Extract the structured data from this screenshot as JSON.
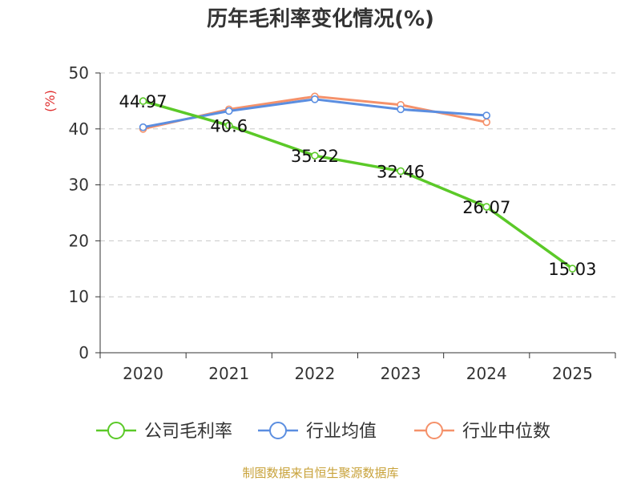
{
  "chart_data": {
    "type": "line",
    "title": "历年毛利率变化情况(%)",
    "ylabel": "(%)",
    "xlabel": "",
    "categories": [
      "2020",
      "2021",
      "2022",
      "2023",
      "2024",
      "2025"
    ],
    "ylim": [
      0,
      50
    ],
    "yticks": [
      0,
      10,
      20,
      30,
      40,
      50
    ],
    "grid": true,
    "legend_position": "bottom",
    "series": [
      {
        "name": "公司毛利率",
        "color": "#5bc928",
        "values": [
          44.97,
          40.6,
          35.22,
          32.46,
          26.07,
          15.03
        ],
        "labels": [
          "44.97",
          "40.6",
          "35.22",
          "32.46",
          "26.07",
          "15.03"
        ]
      },
      {
        "name": "行业均值",
        "color": "#5b8ee0",
        "values": [
          40.3,
          43.2,
          45.3,
          43.5,
          42.4,
          null
        ]
      },
      {
        "name": "行业中位数",
        "color": "#f5916a",
        "values": [
          40.0,
          43.5,
          45.8,
          44.3,
          41.2,
          null
        ]
      }
    ],
    "source": "制图数据来自恒生聚源数据库"
  }
}
